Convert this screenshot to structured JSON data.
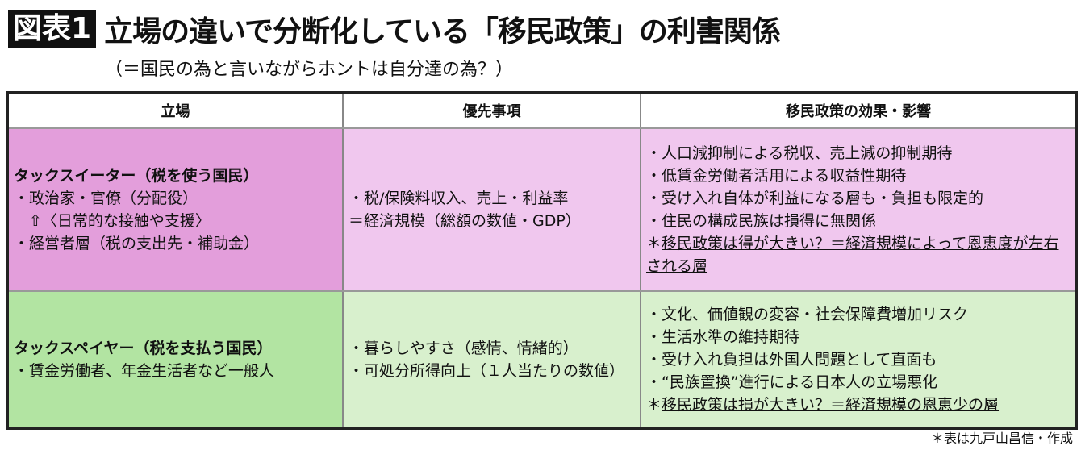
{
  "header": {
    "badge": "図表1",
    "title": "立場の違いで分断化している「移民政策」の利害関係",
    "subtitle": "（＝国民の為と言いながらホントは自分達の為？）"
  },
  "table": {
    "columns": [
      "立場",
      "優先事項",
      "移民政策の効果・影響"
    ],
    "rows": [
      {
        "stance_title": "タックスイーター（税を使う国民）",
        "stance_lines": [
          "・政治家・官僚（分配役）",
          "　⇧〈日常的な接触や支援〉",
          "・経営者層（税の支出先・補助金）"
        ],
        "priority_lines": [
          "・税/保険料収入、売上・利益率",
          "＝経済規模（総額の数値・GDP）"
        ],
        "effect_lines": [
          "・人口減抑制による税収、売上減の抑制期待",
          "・低賃金労働者活用による収益性期待",
          "・受け入れ自体が利益になる層も・負担も限定的",
          "・住民の構成民族は損得に無関係"
        ],
        "effect_note_prefix": "＊",
        "effect_note": "移民政策は得が大きい？＝経済規模によって恩恵度が左右される層"
      },
      {
        "stance_title": "タックスペイヤー（税を支払う国民）",
        "stance_lines": [
          "・賃金労働者、年金生活者など一般人"
        ],
        "priority_lines": [
          "・暮らしやすさ（感情、情緒的）",
          "・可処分所得向上（１人当たりの数値）"
        ],
        "effect_lines": [
          "・文化、価値観の変容・社会保障費増加リスク",
          "・生活水準の維持期待",
          "・受け入れ負担は外国人問題として直面も",
          "・“民族置換”進行による日本人の立場悪化"
        ],
        "effect_note_prefix": "＊",
        "effect_note": "移民政策は損が大きい？＝経済規模の恩恵少の層"
      }
    ]
  },
  "footer": "＊表は九戸山昌信・作成",
  "colors": {
    "eater_stance": "#e39edb",
    "eater_cells": "#f0c7ee",
    "payer_stance": "#b2e4a2",
    "payer_cells": "#d8f0cd"
  }
}
